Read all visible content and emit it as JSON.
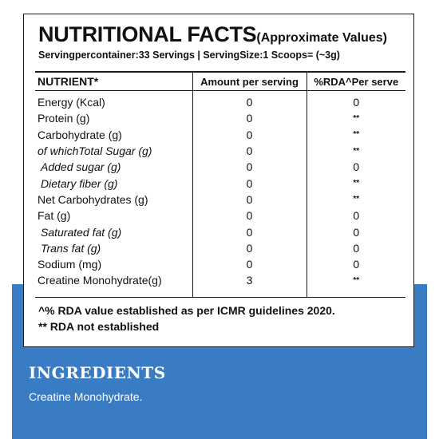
{
  "label": {
    "title": "NUTRITIONAL FACTS",
    "title_suffix": "(Approximate Values)",
    "serving_info": "Servingpercontainer:33 Servings | ServingSize:1 Scoops= (~3g)",
    "columns": [
      "NUTRIENT*",
      "Amount per serving",
      "%RDA^Per serve"
    ],
    "rows": [
      {
        "name": "Energy (Kcal)",
        "amount": "0",
        "rda": "0"
      },
      {
        "name": "Protein (g)",
        "amount": "0",
        "rda": "**"
      },
      {
        "name": "Carbohydrate (g)",
        "amount": "0",
        "rda": "**"
      },
      {
        "name": "of whichTotal Sugar (g)",
        "amount": "0",
        "rda": "**"
      },
      {
        "name": "Added sugar (g)",
        "amount": "0",
        "rda": "0"
      },
      {
        "name": "Dietary fiber (g)",
        "amount": "0",
        "rda": "**"
      },
      {
        "name": "Net Carbohydrates (g)",
        "amount": "0",
        "rda": "**"
      },
      {
        "name": "Fat (g)",
        "amount": "0",
        "rda": "0"
      },
      {
        "name": "Saturated fat (g)",
        "amount": "0",
        "rda": "0"
      },
      {
        "name": "Trans fat (g)",
        "amount": "0",
        "rda": "0"
      },
      {
        "name": "Sodium (mg)",
        "amount": "0",
        "rda": "0"
      },
      {
        "name": "Creatine Monohydrate(g)",
        "amount": "3",
        "rda": "**"
      }
    ],
    "footnotes": [
      "^% RDA value established as per ICMR guidelines 2020.",
      "** RDA not established"
    ]
  },
  "ingredients": {
    "heading": "INGREDIENTS",
    "text": "Creatine Monohydrate."
  },
  "colors": {
    "band": "#3a7cc4",
    "border": "#1a1a1a"
  }
}
